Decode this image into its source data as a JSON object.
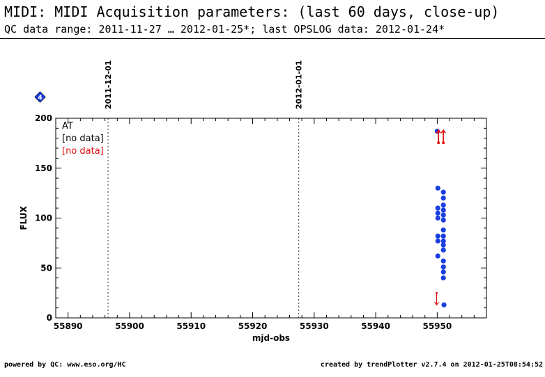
{
  "header": {
    "title": "MIDI: MIDI Acquisition parameters: (last 60 days, close-up)",
    "subtitle": "QC data range: 2011-11-27 … 2012-01-25*; last OPSLOG data: 2012-01-24*"
  },
  "footer": {
    "left": "powered by QC: www.eso.org/HC",
    "right": "created by trendPlotter v2.7.4 on 2012-01-25T08:54:52"
  },
  "badge": {
    "label": "4",
    "color": "#1a3fe0"
  },
  "colors": {
    "data": "#1a3fe0",
    "outlier": "#e01010",
    "axis": "#000000"
  },
  "chart_data": {
    "type": "scatter",
    "xlabel": "mjd-obs",
    "ylabel": "FLUX",
    "xlim": [
      55888,
      55958
    ],
    "ylim": [
      0,
      200
    ],
    "xticks": [
      "55890",
      "55900",
      "55910",
      "55920",
      "55930",
      "55940",
      "55950"
    ],
    "yticks": [
      "0",
      "50",
      "100",
      "150",
      "200"
    ],
    "date_markers": [
      {
        "x": 55896.5,
        "label": "2011-12-01"
      },
      {
        "x": 55927.5,
        "label": "2012-01-01"
      }
    ],
    "legend": [
      {
        "text": "AT",
        "color": "#000000"
      },
      {
        "text": "[no data]",
        "color": "#000000"
      },
      {
        "text": "[no data]",
        "color": "#e01010"
      }
    ],
    "series": [
      {
        "color": "#1a3fe0",
        "points": [
          [
            55950.0,
            187
          ],
          [
            55950.1,
            130
          ],
          [
            55950.1,
            110
          ],
          [
            55950.1,
            105
          ],
          [
            55950.1,
            100
          ],
          [
            55950.1,
            82
          ],
          [
            55950.1,
            77
          ],
          [
            55950.1,
            62
          ],
          [
            55951.0,
            126
          ],
          [
            55951.0,
            120
          ],
          [
            55951.0,
            113
          ],
          [
            55951.0,
            108
          ],
          [
            55951.0,
            103
          ],
          [
            55951.0,
            98
          ],
          [
            55951.0,
            88
          ],
          [
            55951.0,
            82
          ],
          [
            55951.0,
            77
          ],
          [
            55951.0,
            73
          ],
          [
            55951.0,
            68
          ],
          [
            55951.0,
            57
          ],
          [
            55951.0,
            51
          ],
          [
            55951.0,
            46
          ],
          [
            55951.0,
            40
          ],
          [
            55951.1,
            13
          ]
        ]
      }
    ],
    "outliers": [
      {
        "x": 55950.2,
        "y": 181,
        "direction": "up"
      },
      {
        "x": 55951.0,
        "y": 181,
        "direction": "up"
      },
      {
        "x": 55949.9,
        "y": 20,
        "direction": "down"
      }
    ]
  }
}
